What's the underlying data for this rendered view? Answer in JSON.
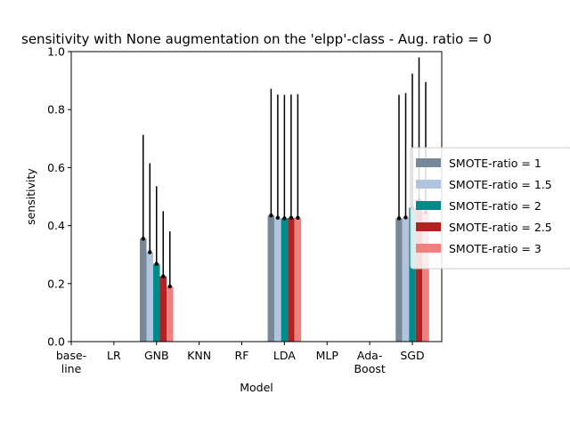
{
  "chart_data": {
    "type": "bar",
    "title": "sensitivity with None augmentation on the 'elpp'-class - Aug. ratio = 0",
    "xlabel": "Model",
    "ylabel": "sensitivity",
    "ylim": [
      0,
      1.0
    ],
    "yticks": [
      "0.0",
      "0.2",
      "0.4",
      "0.6",
      "0.8",
      "1.0"
    ],
    "categories": [
      [
        "base-",
        "line"
      ],
      [
        "LR"
      ],
      [
        "GNB"
      ],
      [
        "KNN"
      ],
      [
        "RF"
      ],
      [
        "LDA"
      ],
      [
        "MLP"
      ],
      [
        "Ada-",
        "Boost"
      ],
      [
        "SGD"
      ]
    ],
    "legend_position": "center-right",
    "series": [
      {
        "name": "SMOTE-ratio = 1",
        "color": "#778899",
        "values": [
          0,
          0,
          0.355,
          0,
          0,
          0.435,
          0,
          0,
          0.425
        ],
        "err_top": [
          0,
          0,
          0.713,
          0,
          0,
          0.872,
          0,
          0,
          0.851
        ]
      },
      {
        "name": "SMOTE-ratio = 1.5",
        "color": "#b0c4de",
        "values": [
          0,
          0,
          0.308,
          0,
          0,
          0.427,
          0,
          0,
          0.428
        ],
        "err_top": [
          0,
          0,
          0.615,
          0,
          0,
          0.852,
          0,
          0,
          0.857
        ]
      },
      {
        "name": "SMOTE-ratio = 2",
        "color": "#008b8b",
        "values": [
          0,
          0,
          0.268,
          0,
          0,
          0.425,
          0,
          0,
          0.462
        ],
        "err_top": [
          0,
          0,
          0.536,
          0,
          0,
          0.851,
          0,
          0,
          0.924
        ]
      },
      {
        "name": "SMOTE-ratio = 2.5",
        "color": "#b22222",
        "values": [
          0,
          0,
          0.225,
          0,
          0,
          0.427,
          0,
          0,
          0.488
        ],
        "err_top": [
          0,
          0,
          0.45,
          0,
          0,
          0.852,
          0,
          0,
          0.98
        ]
      },
      {
        "name": "SMOTE-ratio = 3",
        "color": "#f08080",
        "values": [
          0,
          0,
          0.19,
          0,
          0,
          0.427,
          0,
          0,
          0.446
        ],
        "err_top": [
          0,
          0,
          0.38,
          0,
          0,
          0.853,
          0,
          0,
          0.895
        ]
      }
    ]
  }
}
